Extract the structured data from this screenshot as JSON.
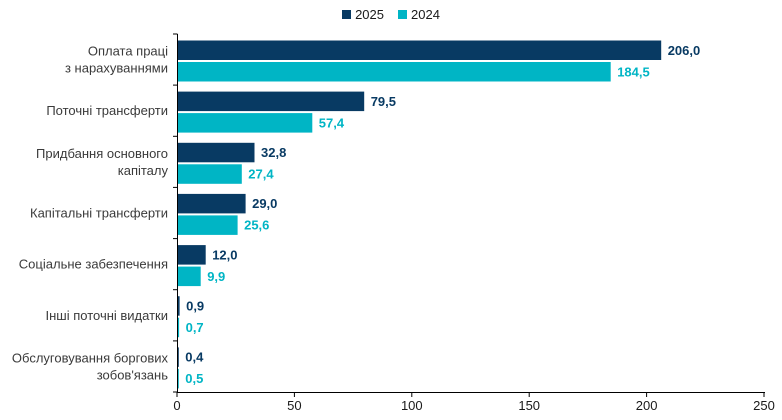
{
  "legend": {
    "items": [
      {
        "label": "2025",
        "color": "#083a63"
      },
      {
        "label": "2024",
        "color": "#00b5c5"
      }
    ]
  },
  "chart_data": {
    "type": "bar",
    "orientation": "horizontal",
    "title": "",
    "xlabel": "",
    "ylabel": "",
    "categories": [
      [
        "Оплата праці",
        "з нарахуваннями"
      ],
      [
        "Поточні трансферти"
      ],
      [
        "Придбання основного",
        "капіталу"
      ],
      [
        "Капітальні трансферти"
      ],
      [
        "Соціальне забезпечення"
      ],
      [
        "Інші поточні видатки"
      ],
      [
        "Обслуговування боргових",
        "зобов'язань"
      ]
    ],
    "series": [
      {
        "name": "2025",
        "color": "#083a63",
        "values": [
          206.0,
          79.5,
          32.8,
          29.0,
          12.0,
          0.9,
          0.4
        ],
        "labels": [
          "206,0",
          "79,5",
          "32,8",
          "29,0",
          "12,0",
          "0,9",
          "0,4"
        ]
      },
      {
        "name": "2024",
        "color": "#00b5c5",
        "values": [
          184.5,
          57.4,
          27.4,
          25.6,
          9.9,
          0.7,
          0.5
        ],
        "labels": [
          "184,5",
          "57,4",
          "27,4",
          "25,6",
          "9,9",
          "0,7",
          "0,5"
        ]
      }
    ],
    "xlim": [
      0,
      250
    ],
    "xticks": [
      0,
      50,
      100,
      150,
      200,
      250
    ],
    "xtick_labels": [
      "0",
      "50",
      "100",
      "150",
      "200",
      "250"
    ],
    "grid": false,
    "legend_position": "top-center",
    "decimal_separator": ","
  }
}
